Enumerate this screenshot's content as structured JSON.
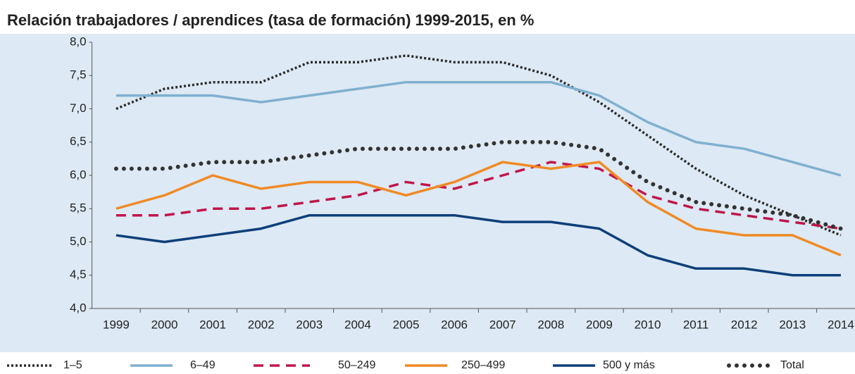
{
  "chart_data": {
    "type": "line",
    "title": "Relación trabajadores / aprendices (tasa de formación) 1999-2015, en %",
    "categories": [
      "1999",
      "2000",
      "2001",
      "2002",
      "2003",
      "2004",
      "2005",
      "2006",
      "2007",
      "2008",
      "2009",
      "2010",
      "2011",
      "2012",
      "2013",
      "2014"
    ],
    "ylim": [
      4,
      8
    ],
    "yticks": [
      {
        "value": 4,
        "label": "4,0"
      },
      {
        "value": 4.5,
        "label": "4,5"
      },
      {
        "value": 5,
        "label": "5,0"
      },
      {
        "value": 5.5,
        "label": "5,5"
      },
      {
        "value": 6,
        "label": "6,0"
      },
      {
        "value": 6.5,
        "label": "6,5"
      },
      {
        "value": 7,
        "label": "7,0"
      },
      {
        "value": 7.5,
        "label": "7,5"
      },
      {
        "value": 8,
        "label": "8,0"
      }
    ],
    "grid": false,
    "series": [
      {
        "name": "1–5",
        "color": "#2b2b2b",
        "dash": "dotted",
        "values": [
          7.0,
          7.3,
          7.4,
          7.4,
          7.7,
          7.7,
          7.8,
          7.7,
          7.7,
          7.5,
          7.1,
          6.6,
          6.1,
          5.7,
          5.4,
          5.1
        ]
      },
      {
        "name": "6–49",
        "color": "#7fb0d0",
        "dash": "solid",
        "values": [
          7.2,
          7.2,
          7.2,
          7.1,
          7.2,
          7.3,
          7.4,
          7.4,
          7.4,
          7.4,
          7.2,
          6.8,
          6.5,
          6.4,
          6.2,
          6.0
        ]
      },
      {
        "name": "50–249",
        "color": "#c0164a",
        "dash": "dashed",
        "values": [
          5.4,
          5.4,
          5.5,
          5.5,
          5.6,
          5.7,
          5.9,
          5.8,
          6.0,
          6.2,
          6.1,
          5.7,
          5.5,
          5.4,
          5.3,
          5.2
        ]
      },
      {
        "name": "250–499",
        "color": "#f08a24",
        "dash": "solid",
        "values": [
          5.5,
          5.7,
          6.0,
          5.8,
          5.9,
          5.9,
          5.7,
          5.9,
          6.2,
          6.1,
          6.2,
          5.6,
          5.2,
          5.1,
          5.1,
          4.8
        ]
      },
      {
        "name": "500 y más",
        "color": "#0e3f7a",
        "dash": "solid",
        "values": [
          5.1,
          5.0,
          5.1,
          5.2,
          5.4,
          5.4,
          5.4,
          5.4,
          5.3,
          5.3,
          5.2,
          4.8,
          4.6,
          4.6,
          4.5,
          4.5
        ]
      },
      {
        "name": "Total",
        "color": "#333333",
        "dash": "dots",
        "values": [
          6.1,
          6.1,
          6.2,
          6.2,
          6.3,
          6.4,
          6.4,
          6.4,
          6.5,
          6.5,
          6.4,
          5.9,
          5.6,
          5.5,
          5.4,
          5.2
        ]
      }
    ]
  }
}
